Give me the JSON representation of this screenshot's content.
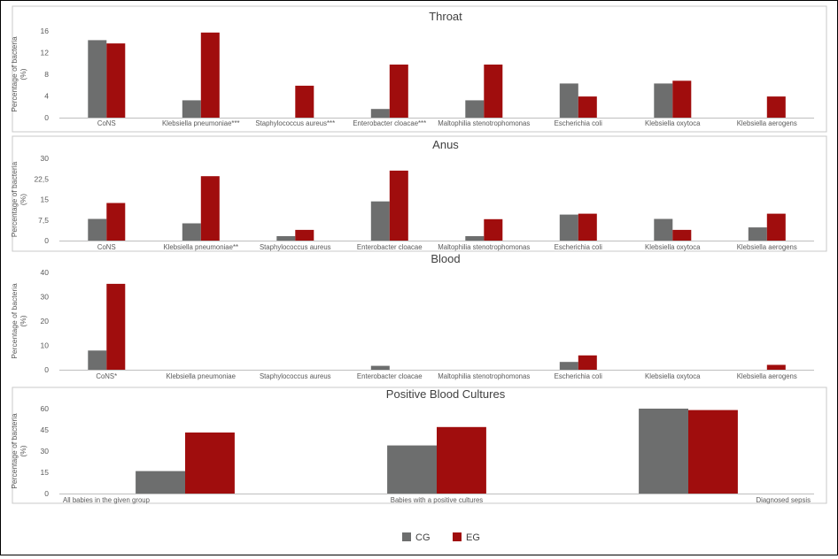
{
  "colors": {
    "CG": "#6d6e6e",
    "EG": "#a00d0d",
    "axis": "#bfbfbf",
    "panel_border": "#c8c8c8"
  },
  "legend": {
    "items": [
      "CG",
      "EG"
    ]
  },
  "chart_data": [
    {
      "type": "bar",
      "title": "Throat",
      "ylabel": "Percentage of bacteria (%)",
      "ylim": [
        0,
        16
      ],
      "yticks": [
        "0",
        "4",
        "8",
        "12",
        "16"
      ],
      "categories": [
        "CoNS",
        "Klebsiella pneumoniae***",
        "Staphylococcus aureus***",
        "Enterobacter cloacae***",
        "Maltophilia stenotrophomonas",
        "Escherichia coli",
        "Klebsiella oxytoca",
        "Klebsiella aerogens"
      ],
      "series": [
        {
          "name": "CG",
          "values": [
            14.3,
            3.2,
            0,
            1.6,
            3.2,
            6.3,
            6.3,
            0
          ]
        },
        {
          "name": "EG",
          "values": [
            13.7,
            15.7,
            5.9,
            9.8,
            9.8,
            3.9,
            6.8,
            3.9
          ]
        }
      ]
    },
    {
      "type": "bar",
      "title": "Anus",
      "ylabel": "Percentage of bacteria (%)",
      "ylim": [
        0,
        30
      ],
      "yticks": [
        "0",
        "7,5",
        "15",
        "22,5",
        "30"
      ],
      "categories": [
        "CoNS",
        "Klebsiella pneumoniae**",
        "Staphylococcus aureus",
        "Enterobacter cloacae",
        "Maltophilia stenotrophomonas",
        "Escherichia coli",
        "Klebsiella oxytoca",
        "Klebsiella aerogens"
      ],
      "series": [
        {
          "name": "CG",
          "values": [
            7.9,
            6.3,
            1.6,
            14.3,
            1.6,
            9.5,
            7.9,
            4.8
          ]
        },
        {
          "name": "EG",
          "values": [
            13.7,
            23.5,
            3.9,
            25.5,
            7.8,
            9.8,
            3.9,
            9.8
          ]
        }
      ]
    },
    {
      "type": "bar",
      "title": "Blood",
      "ylabel": "Percentage of bacteria (%)",
      "ylim": [
        0,
        40
      ],
      "yticks": [
        "0",
        "10",
        "20",
        "30",
        "40"
      ],
      "categories": [
        "CoNS*",
        "Klebsiella pneumoniae",
        "Staphylococcus aureus",
        "Enterobacter cloacae",
        "Maltophilia stenotrophomonas",
        "Escherichia coli",
        "Klebsiella oxytoca",
        "Klebsiella aerogens"
      ],
      "series": [
        {
          "name": "CG",
          "values": [
            7.9,
            0,
            0,
            1.6,
            0,
            3.2,
            0,
            0
          ]
        },
        {
          "name": "EG",
          "values": [
            35.3,
            0,
            0,
            0,
            0,
            5.9,
            0,
            2.0
          ]
        }
      ]
    },
    {
      "type": "bar",
      "title": "Positive Blood Cultures",
      "ylabel": "Percentage of bacteria (%)",
      "ylim": [
        0,
        60
      ],
      "yticks": [
        "0",
        "15",
        "30",
        "45",
        "60"
      ],
      "categories": [
        "All babies in the given group",
        "Babies with a positive cultures",
        "Diagnosed sepsis"
      ],
      "series": [
        {
          "name": "CG",
          "values": [
            15.9,
            34.0,
            60.0
          ]
        },
        {
          "name": "EG",
          "values": [
            43.1,
            47.0,
            59.0
          ]
        }
      ]
    }
  ]
}
